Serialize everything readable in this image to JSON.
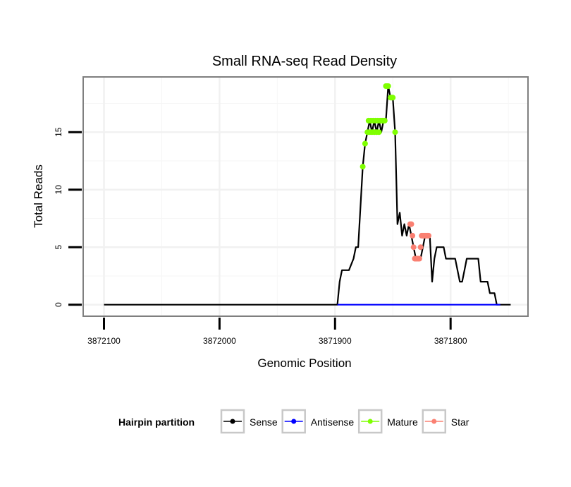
{
  "chart_data": {
    "type": "line",
    "title": "Small RNA-seq Read Density",
    "xlabel": "Genomic Position",
    "ylabel": "Total Reads",
    "x_reversed": true,
    "xlim": [
      3872118,
      3871733
    ],
    "ylim": [
      -1,
      19.8
    ],
    "x_ticks": [
      3872100,
      3872000,
      3871900,
      3871800
    ],
    "x_tick_labels": [
      "3872100",
      "3872000",
      "3871900",
      "3871800"
    ],
    "y_ticks": [
      0,
      5,
      10,
      15
    ],
    "y_tick_labels": [
      "0",
      "5",
      "10",
      "15"
    ],
    "legend": {
      "title": "Hairpin partition",
      "placement": "bottom",
      "entries": [
        {
          "name": "Sense",
          "color": "#000000"
        },
        {
          "name": "Antisense",
          "color": "#0000ff"
        },
        {
          "name": "Mature",
          "color": "#7fff00"
        },
        {
          "name": "Star",
          "color": "#fa8072"
        }
      ]
    },
    "series": [
      {
        "name": "Sense",
        "color": "#000000",
        "kind": "line",
        "x": [
          3872100,
          3871898,
          3871896,
          3871894,
          3871892,
          3871888,
          3871884,
          3871882,
          3871880,
          3871876,
          3871874,
          3871872,
          3871870,
          3871868,
          3871866,
          3871864,
          3871862,
          3871860,
          3871858,
          3871856,
          3871854,
          3871852,
          3871850,
          3871848,
          3871846,
          3871844,
          3871842,
          3871840,
          3871838,
          3871836,
          3871834,
          3871832,
          3871830,
          3871828,
          3871826,
          3871824,
          3871822,
          3871820,
          3871818,
          3871816,
          3871814,
          3871812,
          3871810,
          3871808,
          3871806,
          3871804,
          3871802,
          3871800,
          3871798,
          3871796,
          3871794,
          3871792,
          3871790,
          3871788,
          3871786,
          3871784,
          3871782,
          3871780,
          3871778,
          3871776,
          3871774,
          3871772,
          3871770,
          3871768,
          3871766,
          3871764,
          3871762,
          3871760,
          3871756,
          3871754,
          3871748
        ],
        "y": [
          0,
          0,
          2,
          3,
          3,
          3,
          4,
          5,
          5,
          12,
          14,
          15,
          16,
          15,
          16,
          15,
          16,
          15,
          16,
          16,
          19,
          18,
          18,
          15,
          7,
          8,
          6,
          7,
          6,
          7,
          6,
          5,
          4,
          4,
          4,
          5,
          6,
          6,
          6,
          2,
          4,
          5,
          5,
          5,
          5,
          4,
          4,
          4,
          4,
          4,
          3,
          2,
          2,
          3,
          4,
          4,
          4,
          4,
          4,
          4,
          2,
          2,
          2,
          2,
          1,
          1,
          1,
          0,
          0,
          0,
          0
        ]
      },
      {
        "name": "Antisense",
        "color": "#0000ff",
        "kind": "line",
        "x": [
          3871898,
          3871757
        ],
        "y": [
          0,
          0
        ]
      },
      {
        "name": "Mature",
        "color": "#7fff00",
        "kind": "points",
        "x": [
          3871876,
          3871874,
          3871872,
          3871871,
          3871870,
          3871869,
          3871868,
          3871867,
          3871866,
          3871865,
          3871864,
          3871863,
          3871862,
          3871861,
          3871860,
          3871859,
          3871858,
          3871857,
          3871856,
          3871855,
          3871854,
          3871852,
          3871851,
          3871850,
          3871848
        ],
        "y": [
          12,
          14,
          15,
          16,
          15,
          16,
          15,
          16,
          15,
          16,
          15,
          16,
          15,
          16,
          16,
          16,
          16,
          16,
          19,
          19,
          19,
          18,
          18,
          18,
          15
        ]
      },
      {
        "name": "Star",
        "color": "#fa8072",
        "kind": "points",
        "x": [
          3871835,
          3871834,
          3871833,
          3871832,
          3871831,
          3871830,
          3871829,
          3871828,
          3871827,
          3871826,
          3871825,
          3871824,
          3871823,
          3871822,
          3871821,
          3871820,
          3871819
        ],
        "y": [
          7,
          7,
          6,
          5,
          4,
          4,
          4,
          4,
          4,
          5,
          6,
          6,
          6,
          6,
          6,
          6,
          6
        ]
      }
    ]
  }
}
